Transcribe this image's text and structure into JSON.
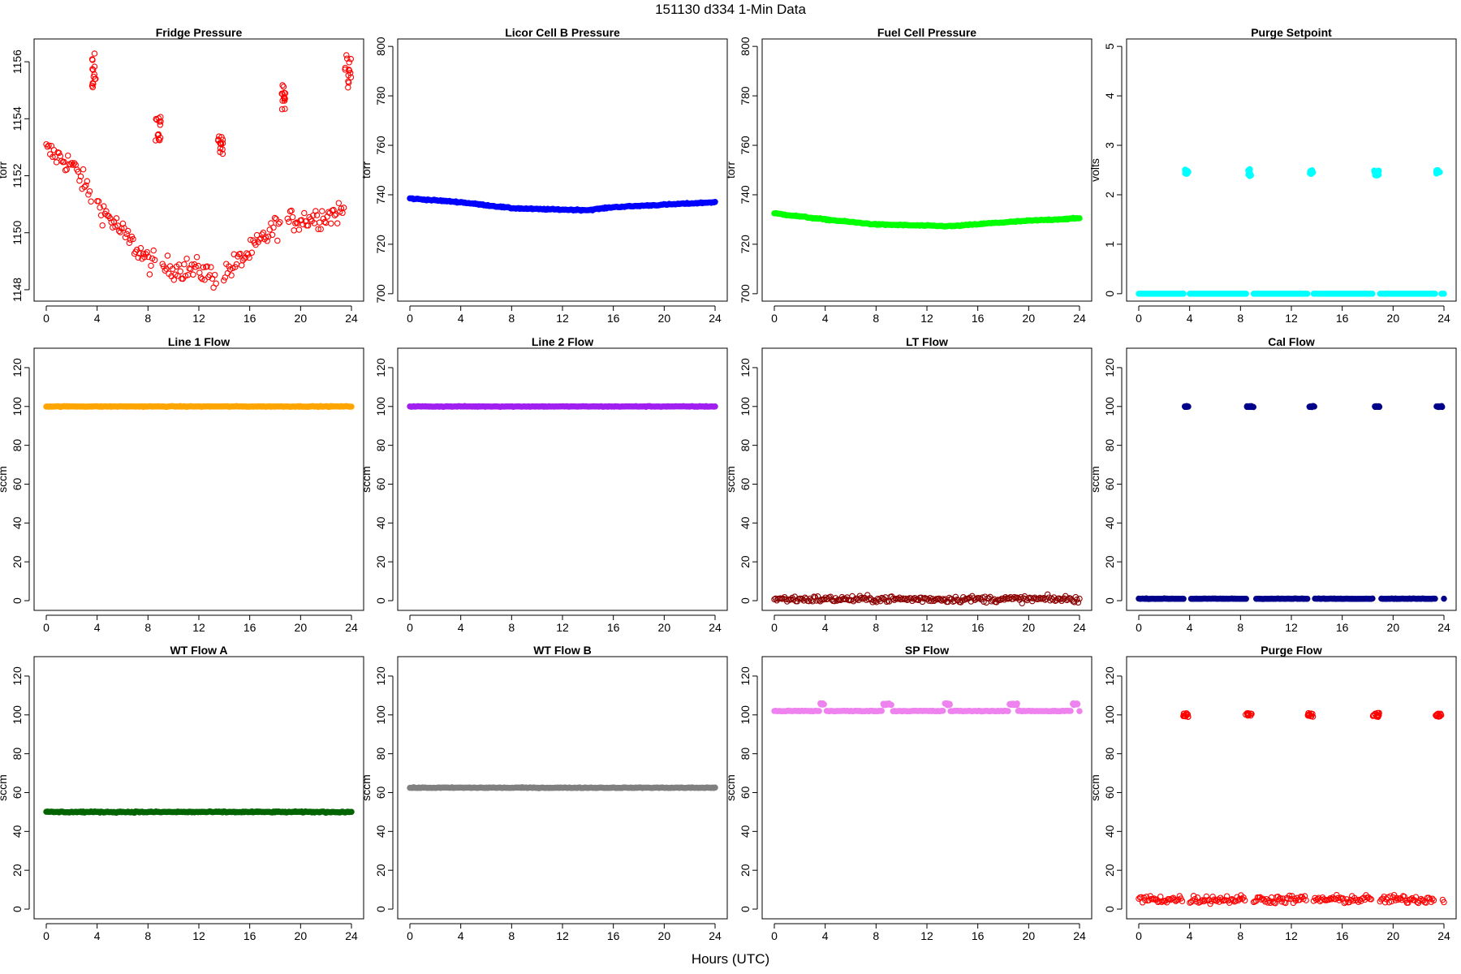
{
  "figure": {
    "title": "151130   d334   1-Min Data",
    "xlabel": "Hours (UTC)"
  },
  "chart_data": [
    {
      "type": "scatter",
      "title": "Fridge Pressure",
      "ylabel": "torr",
      "color": "#ff0000",
      "xlim": [
        0,
        24
      ],
      "ylim": [
        1147.6,
        1156.8
      ],
      "xticks": [
        0,
        4,
        8,
        12,
        16,
        20,
        24
      ],
      "yticks": [
        1148,
        1150,
        1152,
        1154,
        1156
      ],
      "baseline": [
        [
          0,
          1152.9
        ],
        [
          2,
          1152.4
        ],
        [
          4,
          1151.0
        ],
        [
          6,
          1150.0
        ],
        [
          8,
          1149.0
        ],
        [
          9,
          1148.8
        ],
        [
          12,
          1148.7
        ],
        [
          13.5,
          1148.4
        ],
        [
          16,
          1149.3
        ],
        [
          18,
          1150.2
        ],
        [
          19,
          1150.4
        ],
        [
          22,
          1150.6
        ],
        [
          24,
          1150.8
        ]
      ],
      "noise": 0.35,
      "spikes": [
        {
          "x": [
            3.6,
            3.9
          ],
          "y": [
            1155.0,
            1156.4
          ]
        },
        {
          "x": [
            8.6,
            9.0
          ],
          "y": [
            1153.2,
            1154.1
          ]
        },
        {
          "x": [
            13.5,
            13.9
          ],
          "y": [
            1152.7,
            1153.4
          ]
        },
        {
          "x": [
            18.5,
            18.9
          ],
          "y": [
            1154.3,
            1155.2
          ]
        },
        {
          "x": [
            23.5,
            24.0
          ],
          "y": [
            1155.0,
            1156.3
          ]
        }
      ],
      "solid": false
    },
    {
      "type": "scatter",
      "title": "Licor Cell B Pressure",
      "ylabel": "torr",
      "color": "#0000ff",
      "xlim": [
        0,
        24
      ],
      "ylim": [
        697,
        803
      ],
      "xticks": [
        0,
        4,
        8,
        12,
        16,
        20,
        24
      ],
      "yticks": [
        700,
        720,
        740,
        760,
        780,
        800
      ],
      "baseline": [
        [
          0,
          738.5
        ],
        [
          4,
          737.0
        ],
        [
          8,
          734.6
        ],
        [
          10,
          734.2
        ],
        [
          14,
          733.8
        ],
        [
          16,
          735.0
        ],
        [
          20,
          736.0
        ],
        [
          24,
          737.0
        ]
      ],
      "noise": 0.2,
      "spikes": [],
      "solid": true
    },
    {
      "type": "scatter",
      "title": "Fuel Cell Pressure",
      "ylabel": "torr",
      "color": "#00ff00",
      "xlim": [
        0,
        24
      ],
      "ylim": [
        697,
        803
      ],
      "xticks": [
        0,
        4,
        8,
        12,
        16,
        20,
        24
      ],
      "yticks": [
        700,
        720,
        740,
        760,
        780,
        800
      ],
      "baseline": [
        [
          0,
          732.5
        ],
        [
          4,
          730.0
        ],
        [
          8,
          728.0
        ],
        [
          12,
          727.5
        ],
        [
          14,
          727.3
        ],
        [
          17,
          728.5
        ],
        [
          20,
          729.5
        ],
        [
          24,
          730.5
        ]
      ],
      "noise": 0.2,
      "spikes": [],
      "solid": true
    },
    {
      "type": "scatter",
      "title": "Purge Setpoint",
      "ylabel": "volts",
      "color": "#00ffff",
      "xlim": [
        0,
        24
      ],
      "ylim": [
        -0.15,
        5.15
      ],
      "xticks": [
        0,
        4,
        8,
        12,
        16,
        20,
        24
      ],
      "yticks": [
        0,
        1,
        2,
        3,
        4,
        5
      ],
      "baseline": [
        [
          0,
          0
        ],
        [
          24,
          0
        ]
      ],
      "noise": 0,
      "spikes": [
        {
          "x": [
            3.6,
            3.9
          ],
          "y": [
            2.42,
            2.52
          ]
        },
        {
          "x": [
            8.5,
            8.9
          ],
          "y": [
            2.38,
            2.52
          ]
        },
        {
          "x": [
            13.4,
            13.7
          ],
          "y": [
            2.42,
            2.5
          ]
        },
        {
          "x": [
            18.5,
            18.9
          ],
          "y": [
            2.38,
            2.5
          ]
        },
        {
          "x": [
            23.4,
            23.7
          ],
          "y": [
            2.42,
            2.5
          ]
        }
      ],
      "solid": true
    },
    {
      "type": "scatter",
      "title": "Line 1 Flow",
      "ylabel": "sccm",
      "color": "#ffa500",
      "xlim": [
        0,
        24
      ],
      "ylim": [
        -5,
        130
      ],
      "xticks": [
        0,
        4,
        8,
        12,
        16,
        20,
        24
      ],
      "yticks": [
        0,
        20,
        40,
        60,
        80,
        100,
        120
      ],
      "baseline": [
        [
          0,
          100
        ],
        [
          24,
          100
        ]
      ],
      "noise": 0.15,
      "spikes": [],
      "solid": true
    },
    {
      "type": "scatter",
      "title": "Line 2 Flow",
      "ylabel": "sccm",
      "color": "#a020f0",
      "xlim": [
        0,
        24
      ],
      "ylim": [
        -5,
        130
      ],
      "xticks": [
        0,
        4,
        8,
        12,
        16,
        20,
        24
      ],
      "yticks": [
        0,
        20,
        40,
        60,
        80,
        100,
        120
      ],
      "baseline": [
        [
          0,
          100
        ],
        [
          24,
          100
        ]
      ],
      "noise": 0.15,
      "spikes": [],
      "solid": true
    },
    {
      "type": "scatter",
      "title": "LT Flow",
      "ylabel": "sccm",
      "color": "#8b0000",
      "xlim": [
        0,
        24
      ],
      "ylim": [
        -5,
        130
      ],
      "xticks": [
        0,
        4,
        8,
        12,
        16,
        20,
        24
      ],
      "yticks": [
        0,
        20,
        40,
        60,
        80,
        100,
        120
      ],
      "baseline": [
        [
          0,
          0.8
        ],
        [
          24,
          0.8
        ]
      ],
      "noise": 1.4,
      "spikes": [],
      "solid": false
    },
    {
      "type": "scatter",
      "title": "Cal Flow",
      "ylabel": "sccm",
      "color": "#00008b",
      "xlim": [
        0,
        24
      ],
      "ylim": [
        -5,
        130
      ],
      "xticks": [
        0,
        4,
        8,
        12,
        16,
        20,
        24
      ],
      "yticks": [
        0,
        20,
        40,
        60,
        80,
        100,
        120
      ],
      "baseline": [
        [
          0,
          1
        ],
        [
          24,
          1
        ]
      ],
      "noise": 0.1,
      "spikes": [
        {
          "x": [
            3.6,
            4.0
          ],
          "y": [
            99.7,
            100.2
          ]
        },
        {
          "x": [
            8.5,
            9.1
          ],
          "y": [
            99.7,
            100.2
          ]
        },
        {
          "x": [
            13.4,
            13.8
          ],
          "y": [
            99.7,
            100.2
          ]
        },
        {
          "x": [
            18.5,
            19.0
          ],
          "y": [
            99.7,
            100.2
          ]
        },
        {
          "x": [
            23.4,
            23.9
          ],
          "y": [
            99.7,
            100.2
          ]
        }
      ],
      "solid": true
    },
    {
      "type": "scatter",
      "title": "WT Flow A",
      "ylabel": "sccm",
      "color": "#006400",
      "xlim": [
        0,
        24
      ],
      "ylim": [
        -5,
        130
      ],
      "xticks": [
        0,
        4,
        8,
        12,
        16,
        20,
        24
      ],
      "yticks": [
        0,
        20,
        40,
        60,
        80,
        100,
        120
      ],
      "baseline": [
        [
          0,
          50
        ],
        [
          24,
          50
        ]
      ],
      "noise": 0.25,
      "spikes": [],
      "solid": true
    },
    {
      "type": "scatter",
      "title": "WT Flow B",
      "ylabel": "sccm",
      "color": "#808080",
      "xlim": [
        0,
        24
      ],
      "ylim": [
        -5,
        130
      ],
      "xticks": [
        0,
        4,
        8,
        12,
        16,
        20,
        24
      ],
      "yticks": [
        0,
        20,
        40,
        60,
        80,
        100,
        120
      ],
      "baseline": [
        [
          0,
          62.5
        ],
        [
          24,
          62.5
        ]
      ],
      "noise": 0.15,
      "spikes": [],
      "solid": true
    },
    {
      "type": "scatter",
      "title": "SP Flow",
      "ylabel": "sccm",
      "color": "#ee82ee",
      "xlim": [
        0,
        24
      ],
      "ylim": [
        -5,
        130
      ],
      "xticks": [
        0,
        4,
        8,
        12,
        16,
        20,
        24
      ],
      "yticks": [
        0,
        20,
        40,
        60,
        80,
        100,
        120
      ],
      "baseline": [
        [
          0,
          102
        ],
        [
          24,
          102
        ]
      ],
      "noise": 0.15,
      "spikes": [
        {
          "x": [
            3.6,
            4.0
          ],
          "y": [
            105,
            106
          ]
        },
        {
          "x": [
            8.5,
            9.2
          ],
          "y": [
            105,
            106
          ]
        },
        {
          "x": [
            13.4,
            13.8
          ],
          "y": [
            105,
            106
          ]
        },
        {
          "x": [
            18.5,
            19.1
          ],
          "y": [
            105,
            106
          ]
        },
        {
          "x": [
            23.4,
            23.9
          ],
          "y": [
            105,
            106
          ]
        }
      ],
      "solid": true
    },
    {
      "type": "scatter",
      "title": "Purge Flow",
      "ylabel": "sccm",
      "color": "#ff0000",
      "xlim": [
        0,
        24
      ],
      "ylim": [
        -5,
        130
      ],
      "xticks": [
        0,
        4,
        8,
        12,
        16,
        20,
        24
      ],
      "yticks": [
        0,
        20,
        40,
        60,
        80,
        100,
        120
      ],
      "baseline": [
        [
          0,
          5
        ],
        [
          24,
          5
        ]
      ],
      "noise": 1.8,
      "spikes": [
        {
          "x": [
            3.5,
            3.9
          ],
          "y": [
            99,
            101
          ]
        },
        {
          "x": [
            8.4,
            8.9
          ],
          "y": [
            99,
            101
          ]
        },
        {
          "x": [
            13.3,
            13.7
          ],
          "y": [
            99,
            101
          ]
        },
        {
          "x": [
            18.4,
            18.9
          ],
          "y": [
            99,
            101
          ]
        },
        {
          "x": [
            23.3,
            23.8
          ],
          "y": [
            99,
            101
          ]
        }
      ],
      "solid": false
    }
  ]
}
